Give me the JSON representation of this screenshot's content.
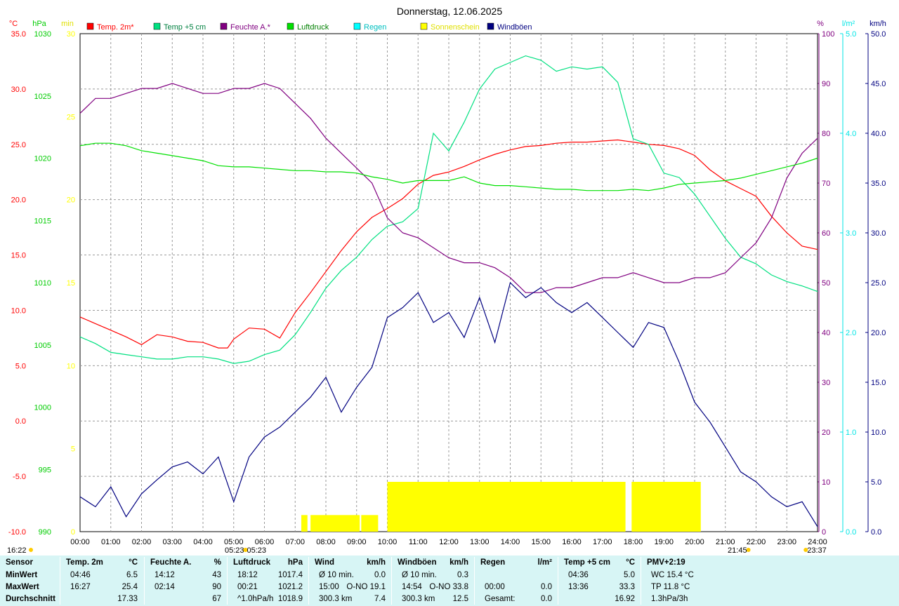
{
  "chart_data": {
    "type": "line",
    "title": "Donnerstag, 12.06.2025",
    "x_ticks": [
      "00:00",
      "01:00",
      "02:00",
      "03:00",
      "04:00",
      "05:00",
      "06:00",
      "07:00",
      "08:00",
      "09:00",
      "10:00",
      "11:00",
      "12:00",
      "13:00",
      "14:00",
      "15:00",
      "16:00",
      "17:00",
      "18:00",
      "19:00",
      "20:00",
      "21:00",
      "22:00",
      "23:00",
      "24:00"
    ],
    "axes": {
      "temp": {
        "unit": "°C",
        "color": "#ff0000",
        "min": -10,
        "max": 35,
        "ticks": [
          "35.0",
          "30.0",
          "25.0",
          "20.0",
          "15.0",
          "10.0",
          "5.0",
          "0.0",
          "-5.0",
          "-10.0"
        ]
      },
      "press": {
        "unit": "hPa",
        "color": "#00cc00",
        "min": 990,
        "max": 1030,
        "ticks": [
          "1030",
          "1025",
          "1020",
          "1015",
          "1010",
          "1005",
          "1000",
          "995",
          "990"
        ]
      },
      "sun": {
        "unit": "min",
        "color": "#ffff00",
        "min": 0,
        "max": 30,
        "ticks": [
          "30",
          "25",
          "20",
          "15",
          "10",
          "5",
          "0"
        ]
      },
      "hum": {
        "unit": "%",
        "color": "#800080",
        "min": 0,
        "max": 100,
        "ticks": [
          "100",
          "90",
          "80",
          "70",
          "60",
          "50",
          "40",
          "30",
          "20",
          "10",
          "0"
        ]
      },
      "rain": {
        "unit": "l/m²",
        "color": "#00e5e5",
        "min": 0,
        "max": 5,
        "ticks": [
          "5.0",
          "4.0",
          "3.0",
          "2.0",
          "1.0",
          "0.0"
        ]
      },
      "wind": {
        "unit": "km/h",
        "color": "#000080",
        "min": 0,
        "max": 50,
        "ticks": [
          "50.0",
          "45.0",
          "40.0",
          "35.0",
          "30.0",
          "25.0",
          "20.0",
          "15.0",
          "10.0",
          "5.0",
          "0.0"
        ]
      }
    },
    "legend": [
      {
        "name": "Temp. 2m*",
        "color": "#ff0000",
        "text_color": "#ff0000"
      },
      {
        "name": "Temp +5 cm",
        "color": "#00e080",
        "text_color": "#008040"
      },
      {
        "name": "Feuchte A.*",
        "color": "#800080",
        "text_color": "#800080"
      },
      {
        "name": "Luftdruck",
        "color": "#00e000",
        "text_color": "#008000"
      },
      {
        "name": "Regen",
        "color": "#00ffff",
        "text_color": "#00c0c0"
      },
      {
        "name": "Sonnenschein",
        "color": "#ffff00",
        "text_color": "#e0e000"
      },
      {
        "name": "Windböen",
        "color": "#000080",
        "text_color": "#000080"
      }
    ],
    "series": [
      {
        "name": "Temp. 2m*",
        "axis": "temp",
        "color": "#ff0000",
        "x": [
          0,
          0.5,
          1,
          1.5,
          2,
          2.5,
          3,
          3.5,
          4,
          4.5,
          4.8,
          5,
          5.5,
          6,
          6.5,
          7,
          7.5,
          8,
          8.5,
          9,
          9.5,
          10,
          10.5,
          11,
          11.5,
          12,
          12.5,
          13,
          13.5,
          14,
          14.5,
          15,
          15.5,
          16,
          16.5,
          17,
          17.5,
          18,
          18.5,
          19,
          19.5,
          20,
          20.5,
          21,
          21.5,
          22,
          22.5,
          23,
          23.5,
          24
        ],
        "y": [
          9.4,
          8.8,
          8.2,
          7.6,
          6.9,
          7.8,
          7.6,
          7.2,
          7.1,
          6.6,
          6.6,
          7.4,
          8.4,
          8.3,
          7.5,
          9.8,
          11.6,
          13.5,
          15.4,
          17.1,
          18.4,
          19.2,
          20.1,
          21.4,
          22.2,
          22.5,
          23.0,
          23.6,
          24.1,
          24.5,
          24.8,
          24.9,
          25.1,
          25.2,
          25.2,
          25.3,
          25.4,
          25.2,
          25.0,
          24.9,
          24.6,
          24.0,
          22.7,
          21.7,
          21.0,
          20.3,
          18.5,
          17.0,
          15.8,
          15.5
        ]
      },
      {
        "name": "Temp +5 cm",
        "axis": "temp",
        "color": "#00e080",
        "x": [
          0,
          0.5,
          1,
          1.5,
          2,
          2.5,
          3,
          3.5,
          4,
          4.5,
          5,
          5.5,
          6,
          6.5,
          7,
          7.5,
          8,
          8.5,
          9,
          9.5,
          10,
          10.5,
          11,
          11.5,
          12,
          12.5,
          13,
          13.5,
          14,
          14.5,
          15,
          15.5,
          16,
          16.5,
          17,
          17.5,
          18,
          18.5,
          19,
          19.5,
          20,
          20.5,
          21,
          21.5,
          22,
          22.5,
          23,
          23.5,
          24
        ],
        "y": [
          7.6,
          7.0,
          6.2,
          6.0,
          5.8,
          5.6,
          5.6,
          5.8,
          5.8,
          5.6,
          5.2,
          5.4,
          6.0,
          6.4,
          7.8,
          9.8,
          12.0,
          13.6,
          14.8,
          16.4,
          17.6,
          18.0,
          19.2,
          26.0,
          24.4,
          27.0,
          30.0,
          31.8,
          32.4,
          33.0,
          32.6,
          31.6,
          32.0,
          31.8,
          32.0,
          30.6,
          25.5,
          25.0,
          22.4,
          22.0,
          20.5,
          18.5,
          16.5,
          14.8,
          14.2,
          13.2,
          12.6,
          12.2,
          11.7
        ]
      },
      {
        "name": "Feuchte A.*",
        "axis": "hum",
        "color": "#800080",
        "x": [
          0,
          0.5,
          1,
          1.5,
          2,
          2.5,
          3,
          3.5,
          4,
          4.5,
          5,
          5.5,
          6,
          6.5,
          7,
          7.5,
          8,
          8.5,
          9,
          9.5,
          10,
          10.5,
          11,
          11.5,
          12,
          12.5,
          13,
          13.5,
          14,
          14.5,
          15,
          15.5,
          16,
          16.5,
          17,
          17.5,
          18,
          18.5,
          19,
          19.5,
          20,
          20.5,
          21,
          21.5,
          22,
          22.5,
          23,
          23.5,
          24
        ],
        "y": [
          84,
          87,
          87,
          88,
          89,
          89,
          90,
          89,
          88,
          88,
          89,
          89,
          90,
          89,
          86,
          83,
          79,
          76,
          73,
          70,
          63,
          60,
          59,
          57,
          55,
          54,
          54,
          53,
          51,
          48,
          48,
          49,
          49,
          50,
          51,
          51,
          52,
          51,
          50,
          50,
          51,
          51,
          52,
          55,
          58,
          63,
          71,
          76,
          79
        ]
      },
      {
        "name": "Luftdruck",
        "axis": "press",
        "color": "#00e000",
        "x": [
          0,
          0.5,
          1,
          1.5,
          2,
          2.5,
          3,
          3.5,
          4,
          4.5,
          5,
          5.5,
          6,
          6.5,
          7,
          7.5,
          8,
          8.5,
          9,
          9.5,
          10,
          10.5,
          11,
          11.5,
          12,
          12.5,
          13,
          13.5,
          14,
          14.5,
          15,
          15.5,
          16,
          16.5,
          17,
          17.5,
          18,
          18.5,
          19,
          19.5,
          20,
          20.5,
          21,
          21.5,
          22,
          22.5,
          23,
          23.5,
          24
        ],
        "y": [
          1021.0,
          1021.2,
          1021.2,
          1021.0,
          1020.6,
          1020.4,
          1020.2,
          1020.0,
          1019.8,
          1019.4,
          1019.3,
          1019.3,
          1019.2,
          1019.1,
          1019.0,
          1019.0,
          1018.9,
          1018.9,
          1018.8,
          1018.5,
          1018.3,
          1018.0,
          1018.2,
          1018.2,
          1018.2,
          1018.5,
          1018.0,
          1017.8,
          1017.8,
          1017.7,
          1017.6,
          1017.5,
          1017.5,
          1017.4,
          1017.4,
          1017.4,
          1017.5,
          1017.4,
          1017.6,
          1017.9,
          1018.0,
          1018.1,
          1018.2,
          1018.4,
          1018.7,
          1019.0,
          1019.3,
          1019.6,
          1020.0
        ]
      },
      {
        "name": "Windböen",
        "axis": "wind",
        "color": "#000080",
        "x": [
          0,
          0.5,
          1,
          1.5,
          2,
          2.5,
          3,
          3.5,
          4,
          4.5,
          5,
          5.5,
          6,
          6.5,
          7,
          7.5,
          8,
          8.5,
          9,
          9.5,
          10,
          10.5,
          11,
          11.5,
          12,
          12.5,
          13,
          13.5,
          14,
          14.5,
          15,
          15.5,
          16,
          16.5,
          17,
          17.5,
          18,
          18.5,
          19,
          19.5,
          20,
          20.5,
          21,
          21.5,
          22,
          22.5,
          23,
          23.5,
          24
        ],
        "y": [
          3.5,
          2.5,
          4.5,
          1.5,
          3.8,
          5.2,
          6.5,
          7.0,
          5.8,
          7.5,
          3.0,
          7.5,
          9.5,
          10.5,
          12.0,
          13.5,
          15.5,
          12.0,
          14.5,
          16.5,
          21.5,
          22.5,
          24.0,
          21.0,
          22.0,
          19.5,
          23.5,
          19.0,
          25.0,
          23.5,
          24.5,
          23.0,
          22.0,
          23.0,
          21.5,
          20.0,
          18.5,
          21.0,
          20.5,
          17.0,
          13.0,
          11.0,
          8.5,
          6.0,
          5.0,
          3.5,
          2.5,
          3.0,
          0.5
        ]
      },
      {
        "name": "Sonnenschein",
        "axis": "sun",
        "color": "#ffff00",
        "type": "bar",
        "bars": [
          [
            7.2,
            7.4,
            1
          ],
          [
            7.5,
            9.1,
            1
          ],
          [
            9.15,
            9.7,
            1
          ],
          [
            10.0,
            17.75,
            3
          ],
          [
            17.95,
            20.2,
            3
          ]
        ]
      }
    ],
    "markers": [
      {
        "label": "05:23",
        "color": "#ffcc00"
      },
      {
        "label": "05:23",
        "color": "#ffcc00"
      },
      {
        "label": "21:45",
        "color": "#ffcc00"
      },
      {
        "label": "23:37",
        "color": "#ffcc00"
      }
    ],
    "corner_label": "16:22"
  },
  "table": {
    "row_labels": [
      "Sensor",
      "MinWert",
      "MaxWert",
      "Durchschnitt"
    ],
    "columns": [
      {
        "title": "Temp. 2m",
        "unit": "°C",
        "rows": [
          [
            "04:46",
            "6.5"
          ],
          [
            "16:27",
            "25.4"
          ],
          [
            "",
            "17.33"
          ]
        ]
      },
      {
        "title": "Feuchte A.",
        "unit": "%",
        "rows": [
          [
            "14:12",
            "43"
          ],
          [
            "02:14",
            "90"
          ],
          [
            "",
            "67"
          ]
        ]
      },
      {
        "title": "Luftdruck",
        "unit": "hPa",
        "rows": [
          [
            "18:12",
            "1017.4"
          ],
          [
            "00:21",
            "1021.2"
          ],
          [
            "^1.0hPa/h",
            "1018.9"
          ]
        ]
      },
      {
        "title": "Wind",
        "unit": "km/h",
        "rows": [
          [
            "Ø 10 min.",
            "0.0"
          ],
          [
            "15:00",
            "O-NO 19.1"
          ],
          [
            "300.3 km",
            "7.4"
          ]
        ]
      },
      {
        "title": "Windböen",
        "unit": "km/h",
        "rows": [
          [
            "Ø 10 min.",
            "0.3"
          ],
          [
            "14:54",
            "O-NO 33.8"
          ],
          [
            "300.3 km",
            "12.5"
          ]
        ]
      },
      {
        "title": "Regen",
        "unit": "l/m²",
        "rows": [
          [
            "",
            ""
          ],
          [
            "00:00",
            "0.0"
          ],
          [
            "Gesamt:",
            "0.0"
          ]
        ]
      },
      {
        "title": "Temp +5 cm",
        "unit": "°C",
        "rows": [
          [
            "04:36",
            "5.0"
          ],
          [
            "13:36",
            "33.3"
          ],
          [
            "",
            "16.92"
          ]
        ]
      },
      {
        "title": "PMV+2:19",
        "unit": "",
        "rows": [
          [
            "WC 15.4 °C",
            ""
          ],
          [
            "TP 11.8 °C",
            ""
          ],
          [
            "1.3hPa/3h",
            ""
          ]
        ]
      }
    ]
  }
}
